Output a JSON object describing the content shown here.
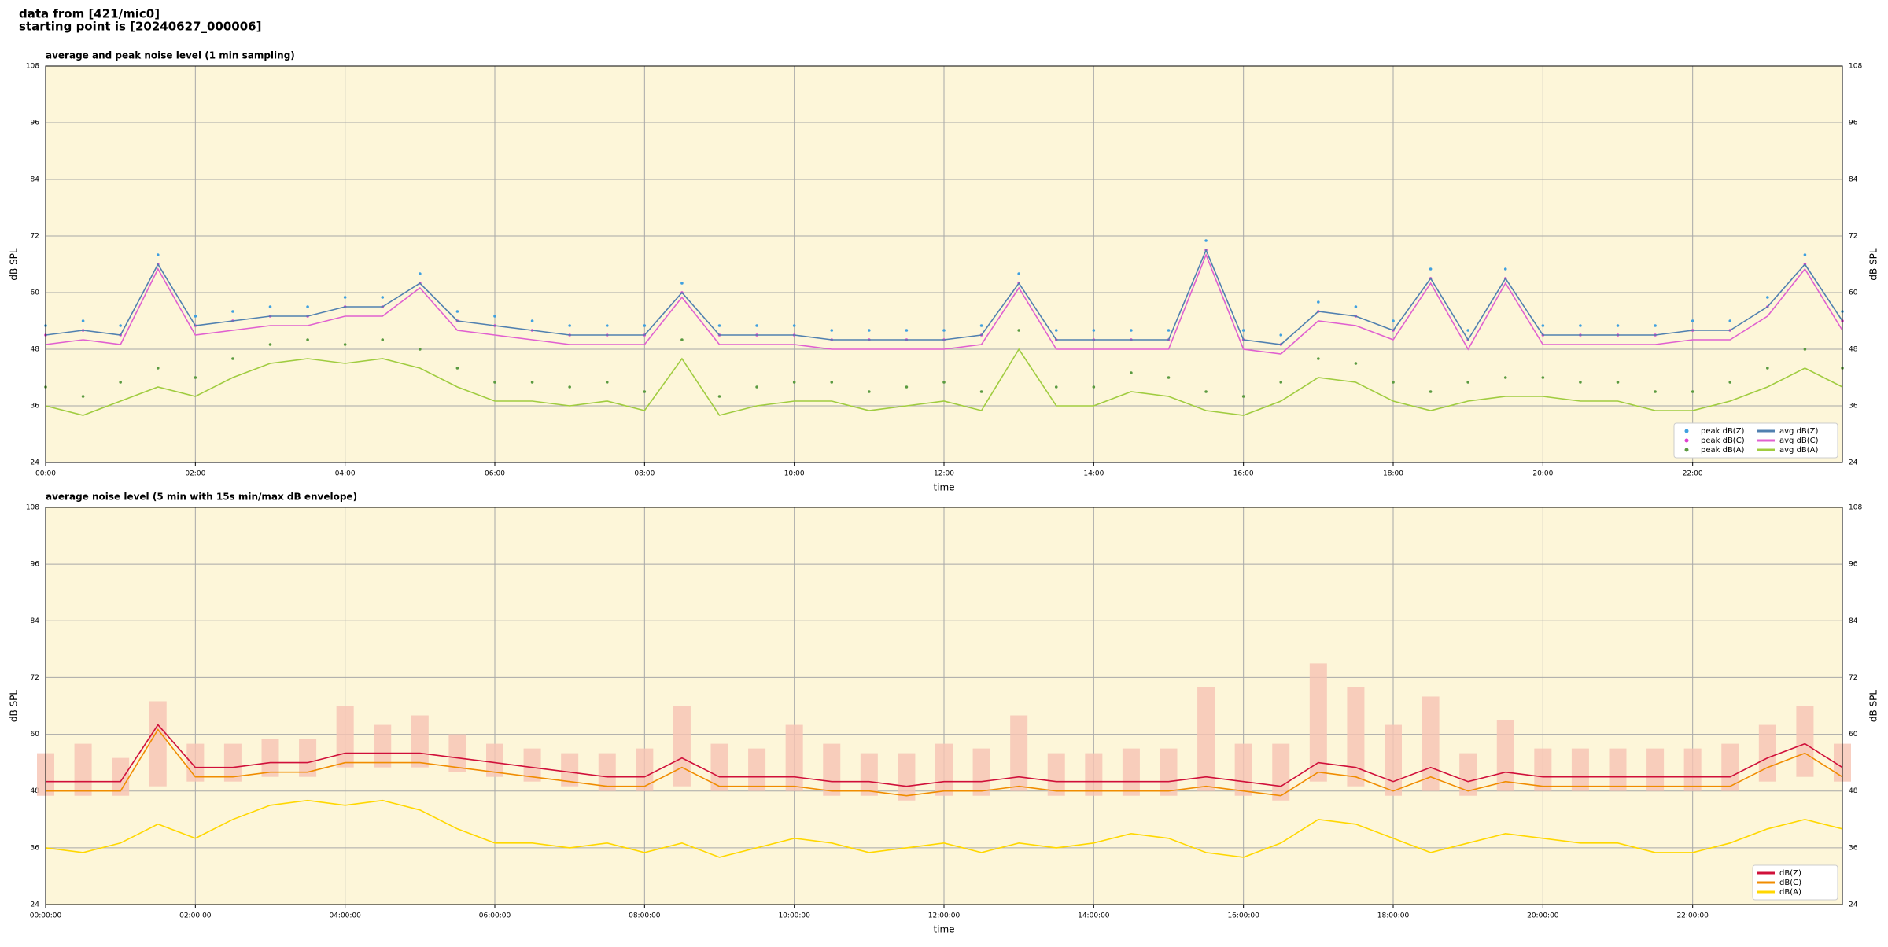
{
  "header": {
    "lines": [
      "data from [421/mic0]",
      "starting point is [20240627_000006]"
    ]
  },
  "chart_data": [
    {
      "type": "line",
      "title": "average and peak noise level (1 min sampling)",
      "xlabel": "time",
      "ylabel": "dB SPL",
      "xlim": [
        0,
        24
      ],
      "ylim": [
        24,
        108
      ],
      "yticks": [
        24,
        36,
        48,
        60,
        72,
        84,
        96,
        108
      ],
      "xticks": [
        {
          "value": 0,
          "label": "00:00"
        },
        {
          "value": 2,
          "label": "02:00"
        },
        {
          "value": 4,
          "label": "04:00"
        },
        {
          "value": 6,
          "label": "06:00"
        },
        {
          "value": 8,
          "label": "08:00"
        },
        {
          "value": 10,
          "label": "10:00"
        },
        {
          "value": 12,
          "label": "12:00"
        },
        {
          "value": 14,
          "label": "14:00"
        },
        {
          "value": 16,
          "label": "16:00"
        },
        {
          "value": 18,
          "label": "18:00"
        },
        {
          "value": 20,
          "label": "20:00"
        },
        {
          "value": 22,
          "label": "22:00"
        }
      ],
      "grid": true,
      "legend": "lower right",
      "legend_columns": 2,
      "background": "#fdf6d9",
      "x": [
        0,
        0.5,
        1,
        1.5,
        2,
        2.5,
        3,
        3.5,
        4,
        4.5,
        5,
        5.5,
        6,
        6.5,
        7,
        7.5,
        8,
        8.5,
        9,
        9.5,
        10,
        10.5,
        11,
        11.5,
        12,
        12.5,
        13,
        13.5,
        14,
        14.5,
        15,
        15.5,
        16,
        16.5,
        17,
        17.5,
        18,
        18.5,
        19,
        19.5,
        20,
        20.5,
        21,
        21.5,
        22,
        22.5,
        23,
        23.5,
        24
      ],
      "series": [
        {
          "name": "peak dB(Z)",
          "style": "points",
          "color": "#3fa0e0",
          "values": [
            53,
            54,
            53,
            68,
            55,
            56,
            57,
            57,
            59,
            59,
            64,
            56,
            55,
            54,
            53,
            53,
            53,
            62,
            53,
            53,
            53,
            52,
            52,
            52,
            52,
            53,
            64,
            52,
            52,
            52,
            52,
            71,
            52,
            51,
            58,
            57,
            54,
            65,
            52,
            65,
            53,
            53,
            53,
            53,
            54,
            54,
            59,
            68,
            56
          ]
        },
        {
          "name": "peak dB(C)",
          "style": "points",
          "color": "#e040d0",
          "values": [
            51,
            52,
            51,
            66,
            53,
            54,
            55,
            55,
            57,
            57,
            62,
            54,
            53,
            52,
            51,
            51,
            51,
            60,
            51,
            51,
            51,
            50,
            50,
            50,
            50,
            51,
            62,
            50,
            50,
            50,
            50,
            69,
            50,
            49,
            56,
            55,
            52,
            63,
            50,
            63,
            51,
            51,
            51,
            51,
            52,
            52,
            57,
            66,
            54
          ]
        },
        {
          "name": "peak dB(A)",
          "style": "points",
          "color": "#5a9a40",
          "values": [
            40,
            38,
            41,
            44,
            42,
            46,
            49,
            50,
            49,
            50,
            48,
            44,
            41,
            41,
            40,
            41,
            39,
            50,
            38,
            40,
            41,
            41,
            39,
            40,
            41,
            39,
            52,
            40,
            40,
            43,
            42,
            39,
            38,
            41,
            46,
            45,
            41,
            39,
            41,
            42,
            42,
            41,
            41,
            39,
            39,
            41,
            44,
            48,
            44
          ]
        },
        {
          "name": "avg dB(Z)",
          "style": "line",
          "color": "#5080b0",
          "values": [
            51,
            52,
            51,
            66,
            53,
            54,
            55,
            55,
            57,
            57,
            62,
            54,
            53,
            52,
            51,
            51,
            51,
            60,
            51,
            51,
            51,
            50,
            50,
            50,
            50,
            51,
            62,
            50,
            50,
            50,
            50,
            69,
            50,
            49,
            56,
            55,
            52,
            63,
            50,
            63,
            51,
            51,
            51,
            51,
            52,
            52,
            57,
            66,
            54
          ]
        },
        {
          "name": "avg dB(C)",
          "style": "line",
          "color": "#e060d0",
          "values": [
            49,
            50,
            49,
            65,
            51,
            52,
            53,
            53,
            55,
            55,
            61,
            52,
            51,
            50,
            49,
            49,
            49,
            59,
            49,
            49,
            49,
            48,
            48,
            48,
            48,
            49,
            61,
            48,
            48,
            48,
            48,
            68,
            48,
            47,
            54,
            53,
            50,
            62,
            48,
            62,
            49,
            49,
            49,
            49,
            50,
            50,
            55,
            65,
            52
          ]
        },
        {
          "name": "avg dB(A)",
          "style": "line",
          "color": "#a0cc40",
          "values": [
            36,
            34,
            37,
            40,
            38,
            42,
            45,
            46,
            45,
            46,
            44,
            40,
            37,
            37,
            36,
            37,
            35,
            46,
            34,
            36,
            37,
            37,
            35,
            36,
            37,
            35,
            48,
            36,
            36,
            39,
            38,
            35,
            34,
            37,
            42,
            41,
            37,
            35,
            37,
            38,
            38,
            37,
            37,
            35,
            35,
            37,
            40,
            44,
            40
          ]
        }
      ]
    },
    {
      "type": "line",
      "title": "average noise level (5 min with 15s min/max dB envelope)",
      "xlabel": "time",
      "ylabel": "dB SPL",
      "xlim": [
        0,
        24
      ],
      "ylim": [
        24,
        108
      ],
      "yticks": [
        24,
        36,
        48,
        60,
        72,
        84,
        96,
        108
      ],
      "xticks": [
        {
          "value": 0,
          "label": "00:00:00"
        },
        {
          "value": 2,
          "label": "02:00:00"
        },
        {
          "value": 4,
          "label": "04:00:00"
        },
        {
          "value": 6,
          "label": "06:00:00"
        },
        {
          "value": 8,
          "label": "08:00:00"
        },
        {
          "value": 10,
          "label": "10:00:00"
        },
        {
          "value": 12,
          "label": "12:00:00"
        },
        {
          "value": 14,
          "label": "14:00:00"
        },
        {
          "value": 16,
          "label": "16:00:00"
        },
        {
          "value": 18,
          "label": "18:00:00"
        },
        {
          "value": 20,
          "label": "20:00:00"
        },
        {
          "value": 22,
          "label": "22:00:00"
        }
      ],
      "grid": true,
      "legend": "lower right",
      "legend_columns": 1,
      "background": "#fdf6d9",
      "x": [
        0,
        0.5,
        1,
        1.5,
        2,
        2.5,
        3,
        3.5,
        4,
        4.5,
        5,
        5.5,
        6,
        6.5,
        7,
        7.5,
        8,
        8.5,
        9,
        9.5,
        10,
        10.5,
        11,
        11.5,
        12,
        12.5,
        13,
        13.5,
        14,
        14.5,
        15,
        15.5,
        16,
        16.5,
        17,
        17.5,
        18,
        18.5,
        19,
        19.5,
        20,
        20.5,
        21,
        21.5,
        22,
        22.5,
        23,
        23.5,
        24
      ],
      "envelope": {
        "color": "#f6c3b3",
        "low": [
          47,
          47,
          47,
          49,
          50,
          50,
          51,
          51,
          53,
          53,
          53,
          52,
          51,
          50,
          49,
          48,
          48,
          49,
          48,
          48,
          48,
          47,
          47,
          46,
          47,
          47,
          48,
          47,
          47,
          47,
          47,
          48,
          47,
          46,
          50,
          49,
          47,
          48,
          47,
          48,
          48,
          48,
          48,
          48,
          48,
          48,
          50,
          51,
          50
        ],
        "high": [
          56,
          58,
          55,
          67,
          58,
          58,
          59,
          59,
          66,
          62,
          64,
          60,
          58,
          57,
          56,
          56,
          57,
          66,
          58,
          57,
          62,
          58,
          56,
          56,
          58,
          57,
          64,
          56,
          56,
          57,
          57,
          70,
          58,
          58,
          75,
          70,
          62,
          68,
          56,
          63,
          57,
          57,
          57,
          57,
          57,
          58,
          62,
          66,
          58
        ]
      },
      "series": [
        {
          "name": "dB(Z)",
          "style": "line",
          "color": "#d0103a",
          "values": [
            50,
            50,
            50,
            62,
            53,
            53,
            54,
            54,
            56,
            56,
            56,
            55,
            54,
            53,
            52,
            51,
            51,
            55,
            51,
            51,
            51,
            50,
            50,
            49,
            50,
            50,
            51,
            50,
            50,
            50,
            50,
            51,
            50,
            49,
            54,
            53,
            50,
            53,
            50,
            52,
            51,
            51,
            51,
            51,
            51,
            51,
            55,
            58,
            53
          ]
        },
        {
          "name": "dB(C)",
          "style": "line",
          "color": "#f08c00",
          "values": [
            48,
            48,
            48,
            61,
            51,
            51,
            52,
            52,
            54,
            54,
            54,
            53,
            52,
            51,
            50,
            49,
            49,
            53,
            49,
            49,
            49,
            48,
            48,
            47,
            48,
            48,
            49,
            48,
            48,
            48,
            48,
            49,
            48,
            47,
            52,
            51,
            48,
            51,
            48,
            50,
            49,
            49,
            49,
            49,
            49,
            49,
            53,
            56,
            51
          ]
        },
        {
          "name": "dB(A)",
          "style": "line",
          "color": "#ffd700",
          "values": [
            36,
            35,
            37,
            41,
            38,
            42,
            45,
            46,
            45,
            46,
            44,
            40,
            37,
            37,
            36,
            37,
            35,
            37,
            34,
            36,
            38,
            37,
            35,
            36,
            37,
            35,
            37,
            36,
            37,
            39,
            38,
            35,
            34,
            37,
            42,
            41,
            38,
            35,
            37,
            39,
            38,
            37,
            37,
            35,
            35,
            37,
            40,
            42,
            40
          ]
        }
      ]
    }
  ]
}
